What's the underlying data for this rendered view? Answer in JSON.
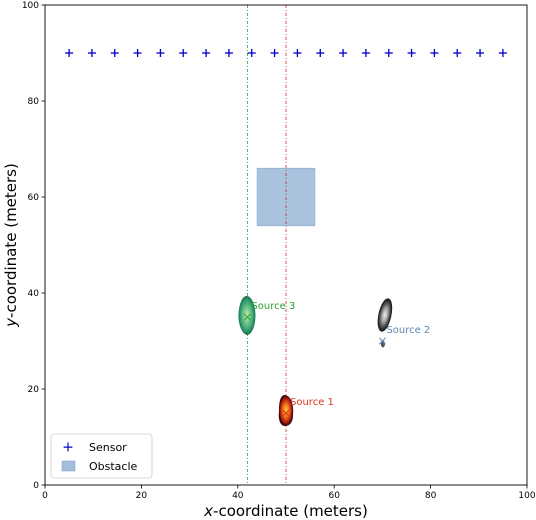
{
  "chart_data": {
    "type": "scatter",
    "title": "",
    "xlabel_prefix": "x",
    "xlabel_rest": "-coordinate (meters)",
    "ylabel_prefix": "y",
    "ylabel_rest": "-coordinate (meters)",
    "xlim": [
      0,
      100
    ],
    "ylim": [
      0,
      100
    ],
    "xticks": [
      0,
      20,
      40,
      60,
      80,
      100
    ],
    "yticks": [
      0,
      20,
      40,
      60,
      80,
      100
    ],
    "grid": false,
    "legend_position": "lower-left",
    "legend": {
      "sensor_label": "Sensor",
      "obstacle_label": "Obstacle"
    },
    "sensors": {
      "y": 90,
      "x": [
        5,
        9.74,
        14.47,
        19.21,
        23.95,
        28.68,
        33.42,
        38.16,
        42.89,
        47.63,
        52.37,
        57.11,
        61.84,
        66.58,
        71.32,
        76.05,
        80.79,
        85.53,
        90.26,
        95
      ],
      "color": "#0000cc"
    },
    "obstacle": {
      "x": [
        44,
        56
      ],
      "y": [
        54,
        66
      ],
      "color": "#a4bfdc"
    },
    "sources": [
      {
        "name": "Source 1",
        "x": 50,
        "y": 15,
        "color": "#e03020",
        "line_x": 50,
        "line_color": "#d62728"
      },
      {
        "name": "Source 2",
        "x": 70,
        "y": 30,
        "color": "#5a86b0",
        "line_x": null,
        "line_color": null
      },
      {
        "name": "Source 3",
        "x": 42,
        "y": 35,
        "color": "#2ca02c",
        "line_x": 42,
        "line_color": "#2ca02c"
      }
    ],
    "marker_symbol": "×"
  }
}
